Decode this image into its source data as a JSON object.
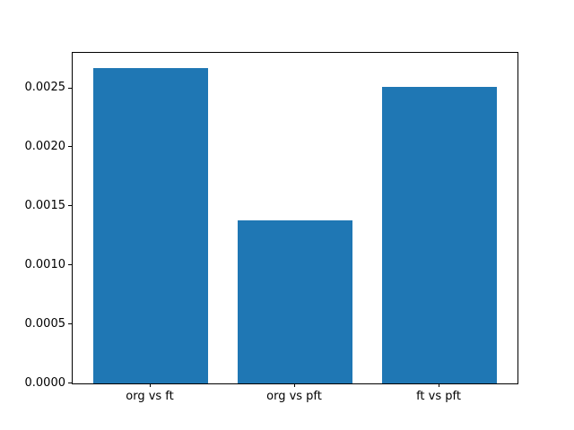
{
  "chart_data": {
    "type": "bar",
    "categories": [
      "org vs ft",
      "org vs pft",
      "ft vs pft"
    ],
    "values": [
      0.00267,
      0.00138,
      0.00251
    ],
    "title": "",
    "xlabel": "",
    "ylabel": "",
    "ylim": [
      0,
      0.0028
    ],
    "ytick_values": [
      0.0,
      0.0005,
      0.001,
      0.0015,
      0.002,
      0.0025
    ],
    "ytick_labels": [
      "0.0000",
      "0.0005",
      "0.0010",
      "0.0015",
      "0.0020",
      "0.0025"
    ],
    "grid": false,
    "legend": false,
    "bar_color": "#1f77b4",
    "spine_color": "#000000",
    "background_color": "#ffffff"
  }
}
